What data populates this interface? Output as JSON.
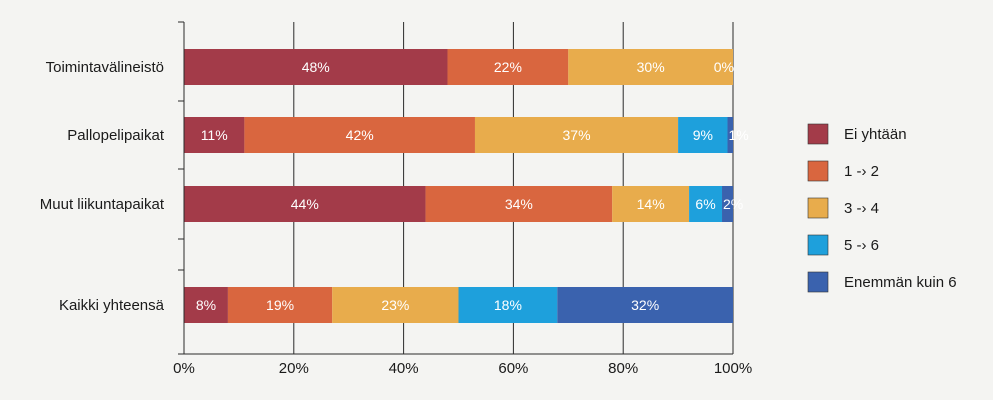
{
  "chart_data": {
    "type": "bar",
    "orientation": "horizontal",
    "stacked": true,
    "title": "",
    "xlabel": "",
    "ylabel": "",
    "xlim": [
      0,
      100
    ],
    "x_ticks": [
      "0%",
      "20%",
      "40%",
      "60%",
      "80%",
      "100%"
    ],
    "grid": "vertical",
    "legend_position": "right",
    "categories": [
      "Toimintavälineistö",
      "Pallopelipaikat",
      "Muut liikuntapaikat",
      "Kaikki yhteensä"
    ],
    "series": [
      {
        "name": "Ei yhtään",
        "color": "#a33b49",
        "values": [
          48,
          11,
          44,
          8
        ],
        "labels": [
          "48%",
          "11%",
          "44%",
          "8%"
        ]
      },
      {
        "name": "1 -› 2",
        "color": "#d9663f",
        "values": [
          22,
          42,
          34,
          19
        ],
        "labels": [
          "22%",
          "42%",
          "34%",
          "19%"
        ]
      },
      {
        "name": "3 -› 4",
        "color": "#e8ac4c",
        "values": [
          30,
          37,
          14,
          23
        ],
        "labels": [
          "30%",
          "37%",
          "14%",
          "23%"
        ]
      },
      {
        "name": "5 -› 6",
        "color": "#1ea0dc",
        "values": [
          0,
          9,
          6,
          18
        ],
        "labels": [
          "0%",
          "9%",
          "6%",
          "18%"
        ]
      },
      {
        "name": "Enemmän kuin 6",
        "color": "#3a62ae",
        "values": [
          0,
          1,
          2,
          32
        ],
        "labels": [
          "",
          "1%",
          "2%",
          "32%"
        ]
      }
    ]
  }
}
